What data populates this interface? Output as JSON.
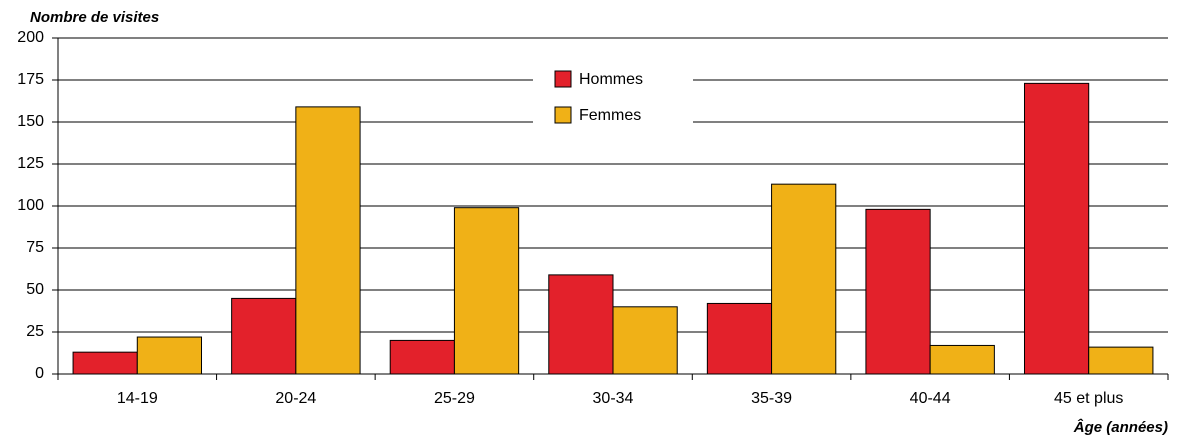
{
  "chart_data": {
    "type": "bar",
    "y_label": "Nombre de visites",
    "x_label": "Âge (années)",
    "categories": [
      "14-19",
      "20-24",
      "25-29",
      "30-34",
      "35-39",
      "40-44",
      "45 et plus"
    ],
    "series": [
      {
        "name": "Hommes",
        "color": "#e3212b",
        "values": [
          13,
          45,
          20,
          59,
          42,
          98,
          173
        ]
      },
      {
        "name": "Femmes",
        "color": "#f0b117",
        "values": [
          22,
          159,
          99,
          40,
          113,
          17,
          16
        ]
      }
    ],
    "ylim": [
      0,
      200
    ],
    "yticks": [
      0,
      25,
      50,
      75,
      100,
      125,
      150,
      175,
      200
    ],
    "grid": true,
    "legend": "top-center"
  }
}
